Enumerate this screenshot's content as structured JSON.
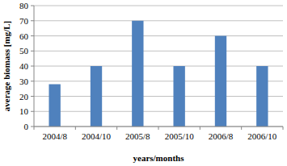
{
  "chart_data": {
    "type": "bar",
    "x_label": "years/months",
    "y_label": "average biomass [mg/L]",
    "categories": [
      "2004/8",
      "2004/10",
      "2005/8",
      "2005/10",
      "2006/8",
      "2006/10"
    ],
    "values": [
      28,
      40,
      70,
      40,
      60,
      40
    ],
    "color": "#4f81bd",
    "ylim": [
      0,
      80
    ],
    "yticks": [
      0,
      10,
      20,
      30,
      40,
      50,
      60,
      70,
      80
    ],
    "grid": true
  }
}
